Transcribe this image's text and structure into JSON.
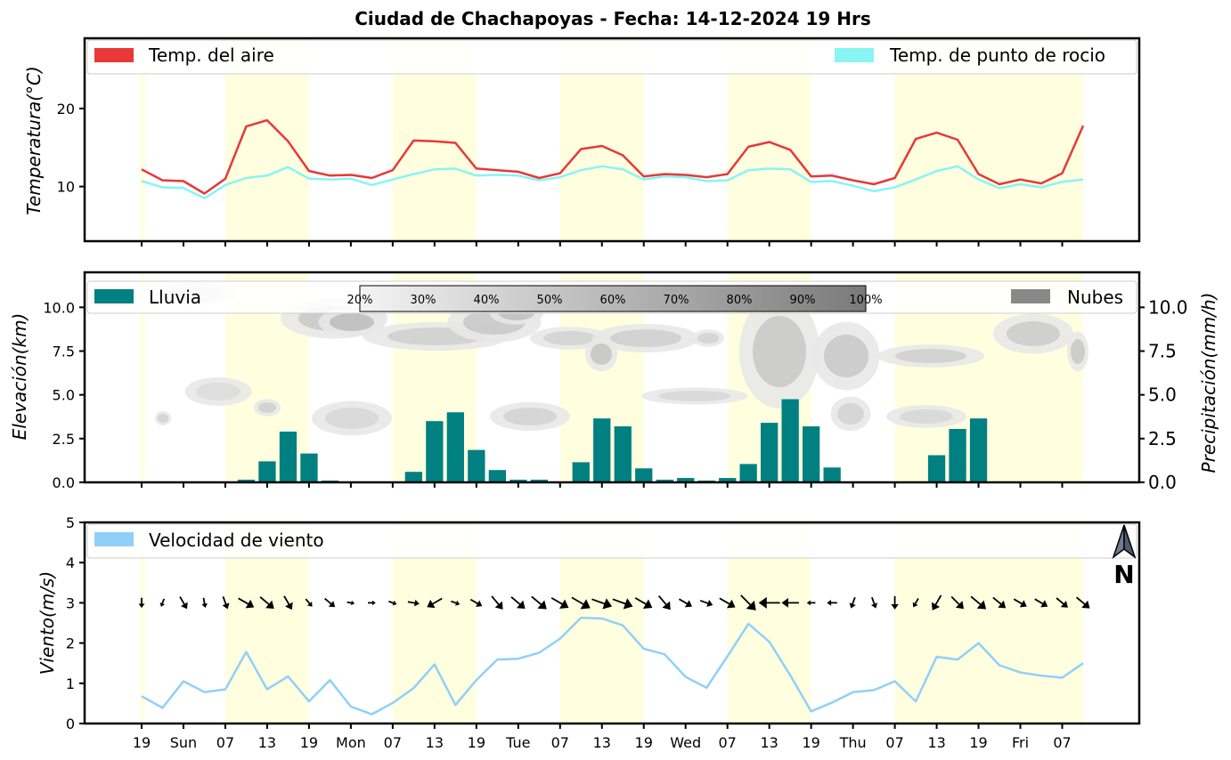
{
  "title": "Ciudad de Chachapoyas   -   Fecha: 14-12-2024 19 Hrs",
  "colors": {
    "air_temp": "#e83838",
    "dew_temp": "#88f4f4",
    "rain": "#008080",
    "clouds": "#888888",
    "wind": "#90d0f8",
    "daylight": "#ffffe0"
  },
  "x_ticks": [
    "19",
    "Sun",
    "07",
    "13",
    "19",
    "Mon",
    "07",
    "13",
    "19",
    "Tue",
    "07",
    "13",
    "19",
    "Wed",
    "07",
    "13",
    "19",
    "Thu",
    "07",
    "13",
    "19",
    "Fri",
    "07"
  ],
  "chart_data": [
    {
      "type": "line",
      "ylabel": "Temperatura(°C)",
      "yticks": [
        "10",
        "20"
      ],
      "ylim": [
        3,
        29
      ],
      "legend": {
        "air": "Temp. del aire",
        "dew": "Temp. de punto de rocio"
      },
      "series": [
        {
          "name": "Temp. del aire",
          "values": [
            12.2,
            10.8,
            10.7,
            9.1,
            11.0,
            17.7,
            18.5,
            15.8,
            12.0,
            11.4,
            11.5,
            11.1,
            12.1,
            15.9,
            15.8,
            15.6,
            12.3,
            12.1,
            11.9,
            11.1,
            11.7,
            14.8,
            15.2,
            14.0,
            11.3,
            11.6,
            11.5,
            11.2,
            11.6,
            15.1,
            15.7,
            14.7,
            11.3,
            11.4,
            10.8,
            10.3,
            11.1,
            16.1,
            16.9,
            16.0,
            11.6,
            10.3,
            10.9,
            10.4,
            11.7,
            17.8
          ]
        },
        {
          "name": "Temp. de punto de rocio",
          "values": [
            10.7,
            9.9,
            9.8,
            8.5,
            10.2,
            11.1,
            11.4,
            12.5,
            11.0,
            10.9,
            11.0,
            10.2,
            10.9,
            11.6,
            12.2,
            12.3,
            11.4,
            11.5,
            11.4,
            10.8,
            11.2,
            12.1,
            12.6,
            12.2,
            10.9,
            11.3,
            11.2,
            10.7,
            10.8,
            12.1,
            12.3,
            12.2,
            10.6,
            10.7,
            10.1,
            9.4,
            9.9,
            10.9,
            12.0,
            12.6,
            10.9,
            9.8,
            10.3,
            9.9,
            10.6,
            10.9
          ]
        }
      ]
    },
    {
      "type": "bar",
      "ylabel": "Elevación(km)",
      "ylabel_right": "Precipitación(mm/h)",
      "yticks": [
        "0.0",
        "2.5",
        "5.0",
        "7.5",
        "10.0"
      ],
      "ylim": [
        0,
        12
      ],
      "legend": {
        "rain": "Lluvia",
        "clouds": "Nubes"
      },
      "colorbar_ticks": [
        "20%",
        "30%",
        "40%",
        "50%",
        "60%",
        "70%",
        "80%",
        "90%",
        "100%"
      ],
      "rain_values": [
        0.0,
        0.05,
        0.0,
        0.0,
        0.0,
        0.15,
        1.2,
        2.9,
        1.65,
        0.1,
        0.05,
        0.05,
        0.05,
        0.6,
        3.5,
        4.0,
        1.85,
        0.7,
        0.15,
        0.15,
        0.05,
        1.15,
        3.65,
        3.2,
        0.8,
        0.15,
        0.25,
        0.1,
        0.25,
        1.05,
        3.4,
        4.75,
        3.2,
        0.85,
        0.0,
        0.0,
        0.0,
        0.05,
        1.55,
        3.05,
        3.65,
        0.0,
        0.0,
        0.0,
        0.0,
        0.0
      ]
    },
    {
      "type": "line",
      "ylabel": "Viento(m/s)",
      "yticks": [
        "0",
        "1",
        "2",
        "3",
        "4",
        "5"
      ],
      "ylim": [
        0,
        5
      ],
      "legend": {
        "wind": "Velocidad de viento"
      },
      "north_label": "N",
      "series": [
        {
          "name": "Velocidad de viento",
          "values": [
            0.68,
            0.39,
            1.05,
            0.78,
            0.85,
            1.78,
            0.85,
            1.17,
            0.55,
            1.08,
            0.42,
            0.23,
            0.51,
            0.88,
            1.47,
            0.46,
            1.08,
            1.59,
            1.61,
            1.76,
            2.11,
            2.63,
            2.61,
            2.44,
            1.86,
            1.72,
            1.16,
            0.89,
            1.67,
            2.48,
            2.03,
            1.2,
            0.3,
            0.52,
            0.78,
            0.83,
            1.05,
            0.55,
            1.66,
            1.59,
            2.0,
            1.45,
            1.27,
            1.19,
            1.14,
            1.5
          ]
        }
      ],
      "wind_dir_deg": [
        180,
        200,
        150,
        170,
        160,
        120,
        130,
        150,
        140,
        130,
        100,
        90,
        110,
        100,
        240,
        110,
        120,
        140,
        130,
        130,
        120,
        120,
        110,
        110,
        120,
        140,
        120,
        110,
        120,
        135,
        270,
        270,
        270,
        270,
        200,
        160,
        180,
        210,
        210,
        135,
        130,
        130,
        120,
        120,
        130,
        130
      ],
      "wind_arrow_size": [
        0.3,
        0.2,
        0.55,
        0.3,
        0.5,
        0.8,
        0.8,
        0.65,
        0.3,
        0.5,
        0.15,
        0.15,
        0.2,
        0.4,
        0.75,
        0.25,
        0.5,
        0.75,
        0.8,
        0.9,
        0.9,
        1.0,
        1.0,
        1.0,
        0.9,
        0.8,
        0.6,
        0.5,
        0.8,
        1.0,
        1.0,
        0.75,
        0.2,
        0.3,
        0.4,
        0.4,
        0.5,
        0.3,
        0.75,
        0.75,
        0.9,
        0.7,
        0.6,
        0.6,
        0.6,
        0.75
      ]
    }
  ]
}
